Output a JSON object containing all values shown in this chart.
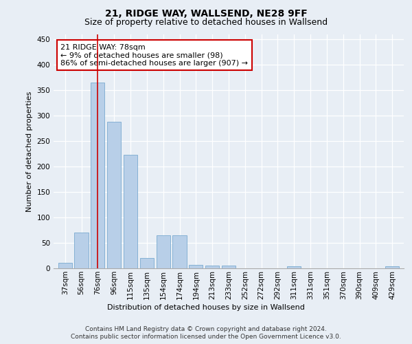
{
  "title1": "21, RIDGE WAY, WALLSEND, NE28 9FF",
  "title2": "Size of property relative to detached houses in Wallsend",
  "xlabel": "Distribution of detached houses by size in Wallsend",
  "ylabel": "Number of detached properties",
  "categories": [
    "37sqm",
    "56sqm",
    "76sqm",
    "96sqm",
    "115sqm",
    "135sqm",
    "154sqm",
    "174sqm",
    "194sqm",
    "213sqm",
    "233sqm",
    "252sqm",
    "272sqm",
    "292sqm",
    "311sqm",
    "331sqm",
    "351sqm",
    "370sqm",
    "390sqm",
    "409sqm",
    "429sqm"
  ],
  "values": [
    11,
    71,
    365,
    288,
    223,
    20,
    65,
    65,
    7,
    5,
    5,
    0,
    0,
    0,
    4,
    0,
    0,
    0,
    0,
    0,
    4
  ],
  "bar_color": "#b8cfe8",
  "bar_edge_color": "#7aaad0",
  "vline_x_index": 2,
  "vline_color": "#cc0000",
  "annotation_line1": "21 RIDGE WAY: 78sqm",
  "annotation_line2": "← 9% of detached houses are smaller (98)",
  "annotation_line3": "86% of semi-detached houses are larger (907) →",
  "annotation_box_color": "#ffffff",
  "annotation_box_edge": "#cc0000",
  "ylim": [
    0,
    460
  ],
  "yticks": [
    0,
    50,
    100,
    150,
    200,
    250,
    300,
    350,
    400,
    450
  ],
  "footer1": "Contains HM Land Registry data © Crown copyright and database right 2024.",
  "footer2": "Contains public sector information licensed under the Open Government Licence v3.0.",
  "bg_color": "#e8eef5",
  "plot_bg_color": "#e8eef5",
  "title1_fontsize": 10,
  "title2_fontsize": 9,
  "ylabel_fontsize": 8,
  "xlabel_fontsize": 8,
  "tick_fontsize": 7.5,
  "footer_fontsize": 6.5,
  "annotation_fontsize": 8
}
